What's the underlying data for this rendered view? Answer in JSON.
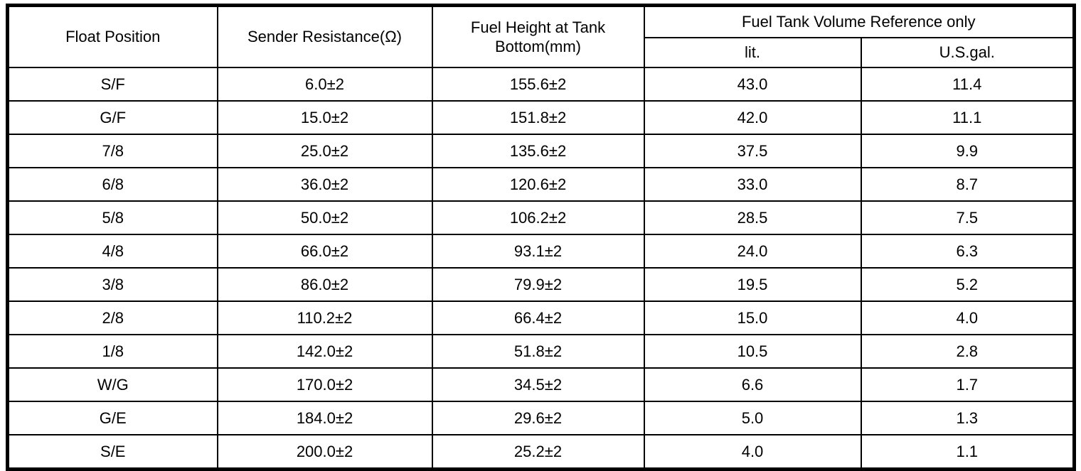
{
  "table": {
    "headers": {
      "float_position": "Float Position",
      "sender_resistance": "Sender Resistance(Ω)",
      "fuel_height": "Fuel Height at Tank Bottom(mm)",
      "volume_group": "Fuel Tank Volume Reference only",
      "volume_lit": "lit.",
      "volume_usgal": "U.S.gal."
    },
    "column_keys": [
      "float-position",
      "sender-resistance",
      "fuel-height",
      "volume-lit",
      "volume-usgal"
    ],
    "rows": [
      [
        "S/F",
        "6.0±2",
        "155.6±2",
        "43.0",
        "11.4"
      ],
      [
        "G/F",
        "15.0±2",
        "151.8±2",
        "42.0",
        "11.1"
      ],
      [
        "7/8",
        "25.0±2",
        "135.6±2",
        "37.5",
        "9.9"
      ],
      [
        "6/8",
        "36.0±2",
        "120.6±2",
        "33.0",
        "8.7"
      ],
      [
        "5/8",
        "50.0±2",
        "106.2±2",
        "28.5",
        "7.5"
      ],
      [
        "4/8",
        "66.0±2",
        "93.1±2",
        "24.0",
        "6.3"
      ],
      [
        "3/8",
        "86.0±2",
        "79.9±2",
        "19.5",
        "5.2"
      ],
      [
        "2/8",
        "110.2±2",
        "66.4±2",
        "15.0",
        "4.0"
      ],
      [
        "1/8",
        "142.0±2",
        "51.8±2",
        "10.5",
        "2.8"
      ],
      [
        "W/G",
        "170.0±2",
        "34.5±2",
        "6.6",
        "1.7"
      ],
      [
        "G/E",
        "184.0±2",
        "29.6±2",
        "5.0",
        "1.3"
      ],
      [
        "S/E",
        "200.0±2",
        "25.2±2",
        "4.0",
        "1.1"
      ]
    ]
  }
}
